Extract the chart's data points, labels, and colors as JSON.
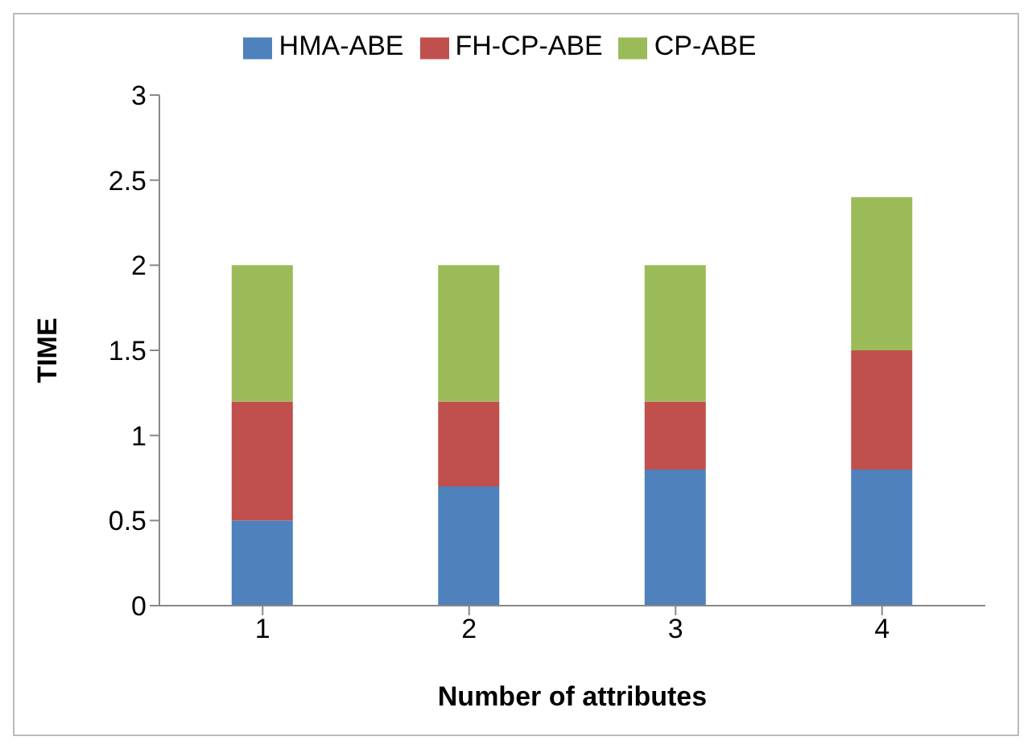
{
  "chart_data": {
    "type": "bar",
    "stacked": true,
    "xlabel": "Number of attributes",
    "ylabel": "TIME",
    "categories": [
      "1",
      "2",
      "3",
      "4"
    ],
    "series": [
      {
        "name": "HMA-ABE",
        "color": "#4f81bd",
        "values": [
          0.5,
          0.7,
          0.8,
          0.8
        ]
      },
      {
        "name": "FH-CP-ABE",
        "color": "#c0504d",
        "values": [
          0.7,
          0.5,
          0.4,
          0.7
        ]
      },
      {
        "name": "CP-ABE",
        "color": "#9bbb59",
        "values": [
          0.8,
          0.8,
          0.8,
          0.9
        ]
      }
    ],
    "ylim": [
      0,
      3
    ],
    "yticks": [
      0,
      0.5,
      1,
      1.5,
      2,
      2.5,
      3
    ],
    "grid": false,
    "legend": "top"
  }
}
